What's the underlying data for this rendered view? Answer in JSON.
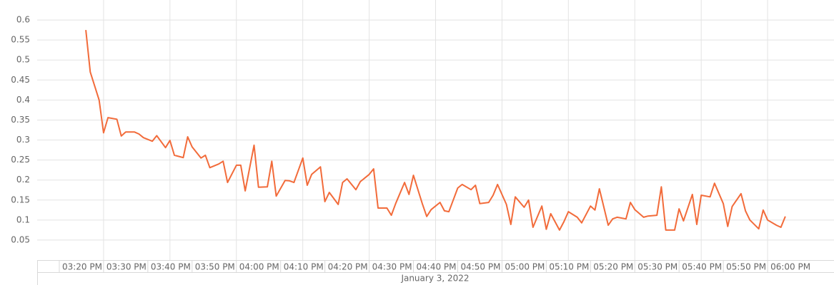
{
  "chart_data": {
    "type": "line",
    "subtitle": "January 3, 2022",
    "color": "#f26b3a",
    "x": [
      "03:26 PM",
      "03:27 PM",
      "03:29 PM",
      "03:30 PM",
      "03:31 PM",
      "03:33 PM",
      "03:34 PM",
      "03:35 PM",
      "03:37 PM",
      "03:38 PM",
      "03:39 PM",
      "03:41 PM",
      "03:42 PM",
      "03:44 PM",
      "03:45 PM",
      "03:46 PM",
      "03:48 PM",
      "03:49 PM",
      "03:50 PM",
      "03:52 PM",
      "03:53 PM",
      "03:54 PM",
      "03:56 PM",
      "03:57 PM",
      "03:58 PM",
      "04:00 PM",
      "04:01 PM",
      "04:02 PM",
      "04:04 PM",
      "04:05 PM",
      "04:07 PM",
      "04:08 PM",
      "04:09 PM",
      "04:11 PM",
      "04:12 PM",
      "04:13 PM",
      "04:15 PM",
      "04:16 PM",
      "04:17 PM",
      "04:19 PM",
      "04:20 PM",
      "04:21 PM",
      "04:23 PM",
      "04:24 PM",
      "04:25 PM",
      "04:27 PM",
      "04:28 PM",
      "04:30 PM",
      "04:31 PM",
      "04:32 PM",
      "04:34 PM",
      "04:35 PM",
      "04:36 PM",
      "04:38 PM",
      "04:39 PM",
      "04:40 PM",
      "04:42 PM",
      "04:43 PM",
      "04:44 PM",
      "04:46 PM",
      "04:47 PM",
      "04:48 PM",
      "04:50 PM",
      "04:51 PM",
      "04:53 PM",
      "04:54 PM",
      "04:55 PM",
      "04:57 PM",
      "04:58 PM",
      "04:59 PM",
      "05:01 PM",
      "05:02 PM",
      "05:03 PM",
      "05:05 PM",
      "05:06 PM",
      "05:07 PM",
      "05:09 PM",
      "05:10 PM",
      "05:11 PM",
      "05:13 PM",
      "05:14 PM",
      "05:15 PM",
      "05:17 PM",
      "05:18 PM",
      "05:20 PM",
      "05:21 PM",
      "05:22 PM",
      "05:24 PM",
      "05:25 PM",
      "05:26 PM",
      "05:28 PM",
      "05:29 PM",
      "05:30 PM",
      "05:32 PM",
      "05:33 PM",
      "05:35 PM",
      "05:36 PM",
      "05:37 PM",
      "05:39 PM",
      "05:40 PM",
      "05:41 PM",
      "05:43 PM",
      "05:44 PM",
      "05:45 PM",
      "05:47 PM",
      "05:48 PM",
      "05:50 PM",
      "05:51 PM",
      "05:52 PM",
      "05:54 PM",
      "05:55 PM",
      "05:56 PM",
      "05:58 PM",
      "05:59 PM",
      "06:00 PM",
      "06:02 PM",
      "06:03 PM",
      "06:04 PM"
    ],
    "values": [
      0.575,
      0.47,
      0.4,
      0.318,
      0.356,
      0.352,
      0.31,
      0.32,
      0.32,
      0.315,
      0.306,
      0.297,
      0.311,
      0.281,
      0.299,
      0.262,
      0.256,
      0.308,
      0.283,
      0.255,
      0.262,
      0.231,
      0.24,
      0.247,
      0.194,
      0.237,
      0.237,
      0.173,
      0.287,
      0.182,
      0.183,
      0.247,
      0.16,
      0.199,
      0.198,
      0.194,
      0.255,
      0.187,
      0.214,
      0.233,
      0.146,
      0.169,
      0.139,
      0.194,
      0.203,
      0.176,
      0.196,
      0.214,
      0.228,
      0.13,
      0.13,
      0.112,
      0.142,
      0.194,
      0.164,
      0.212,
      0.141,
      0.109,
      0.126,
      0.144,
      0.123,
      0.121,
      0.18,
      0.189,
      0.176,
      0.187,
      0.141,
      0.144,
      0.162,
      0.189,
      0.139,
      0.089,
      0.158,
      0.132,
      0.15,
      0.082,
      0.135,
      0.077,
      0.116,
      0.075,
      0.096,
      0.121,
      0.107,
      0.093,
      0.135,
      0.125,
      0.178,
      0.087,
      0.103,
      0.107,
      0.103,
      0.144,
      0.126,
      0.107,
      0.11,
      0.112,
      0.183,
      0.075,
      0.075,
      0.128,
      0.098,
      0.164,
      0.089,
      0.162,
      0.158,
      0.192,
      0.141,
      0.084,
      0.134,
      0.166,
      0.123,
      0.1,
      0.078,
      0.125,
      0.1,
      0.087,
      0.082,
      0.109
    ],
    "xlim": [
      "03:15 PM",
      "06:15 PM"
    ],
    "xticks": [
      "03:20 PM",
      "03:30 PM",
      "03:40 PM",
      "03:50 PM",
      "04:00 PM",
      "04:10 PM",
      "04:20 PM",
      "04:30 PM",
      "04:40 PM",
      "04:50 PM",
      "05:00 PM",
      "05:10 PM",
      "05:20 PM",
      "05:30 PM",
      "05:40 PM",
      "05:50 PM",
      "06:00 PM"
    ],
    "x_grid_minutes": 15,
    "ylim": [
      0,
      0.65
    ],
    "yticks": [
      0.05,
      0.1,
      0.15,
      0.2,
      0.25,
      0.3,
      0.35,
      0.4,
      0.45,
      0.5,
      0.55,
      0.6
    ],
    "grid": true
  }
}
